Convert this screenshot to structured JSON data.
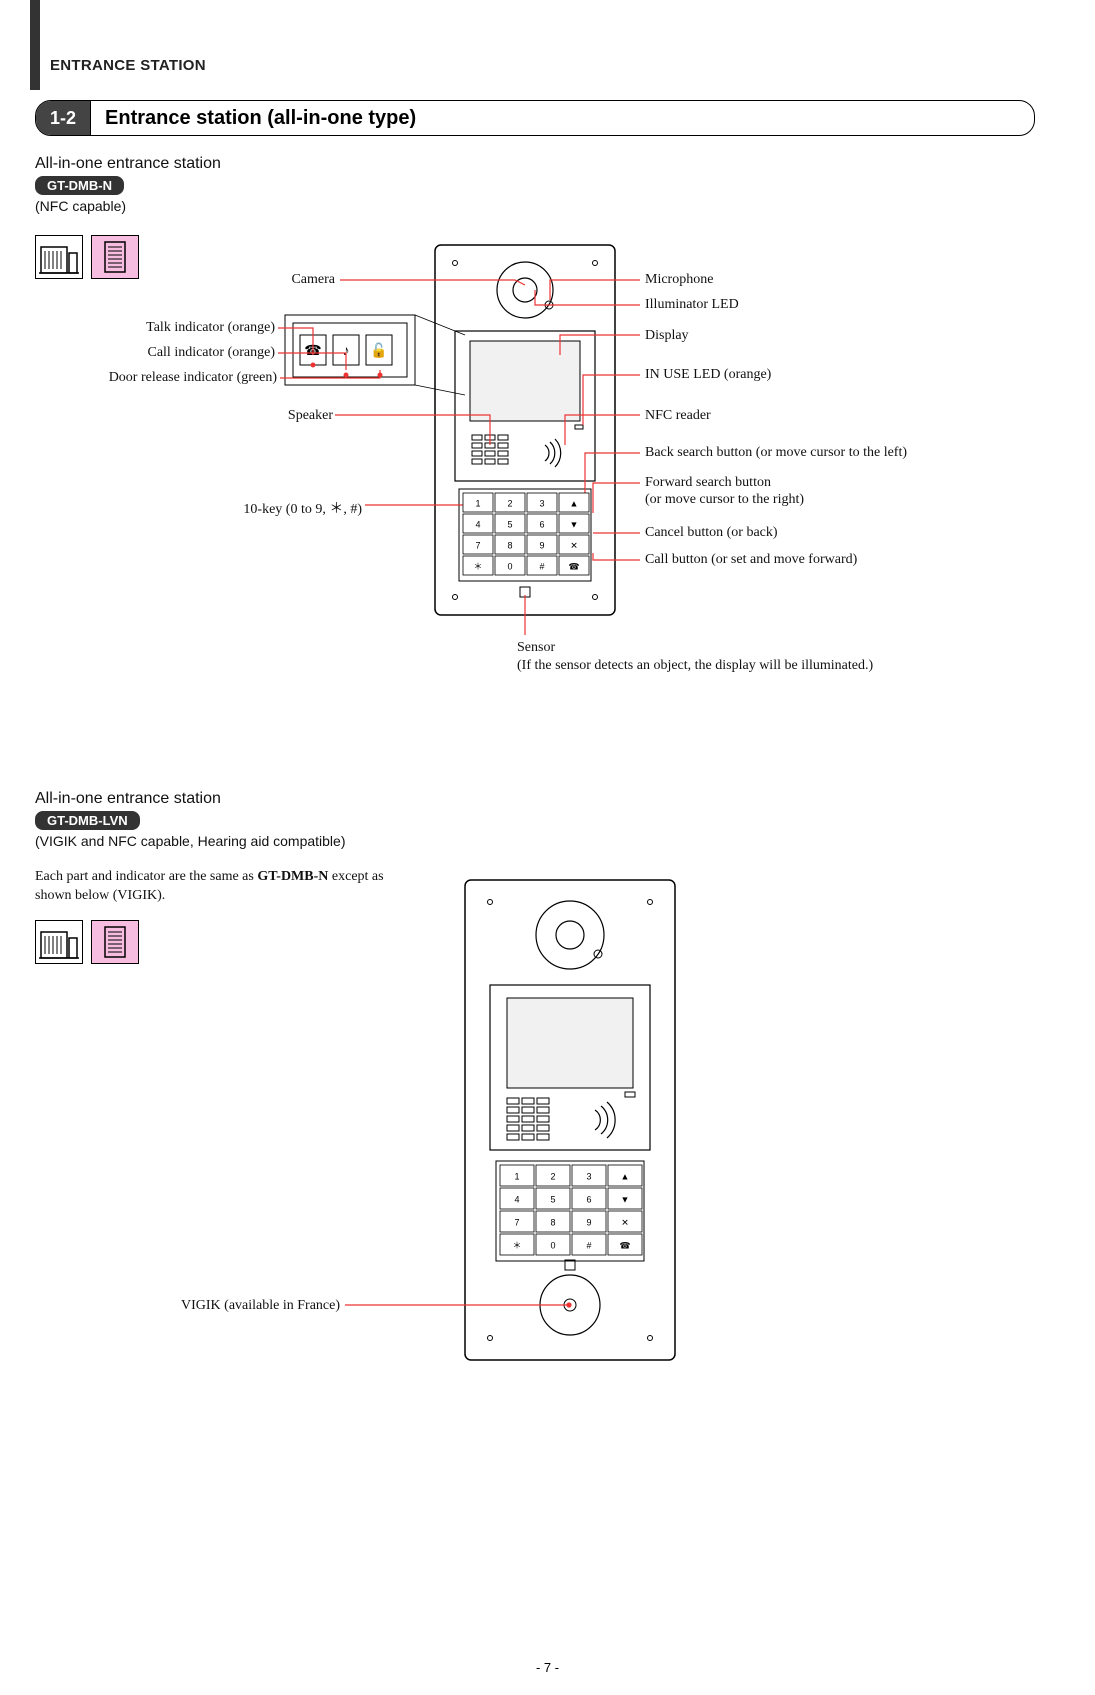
{
  "header": "ENTRANCE STATION",
  "section_number": "1-2",
  "section_title": "Entrance station (all-in-one type)",
  "model1": {
    "heading": "All-in-one entrance station",
    "model": "GT-DMB-N",
    "caps": "(NFC capable)",
    "labels_left": {
      "camera": "Camera",
      "talk_ind": "Talk indicator (orange)",
      "call_ind": "Call indicator (orange)",
      "door_rel": "Door release indicator (green)",
      "speaker": "Speaker",
      "tenkey": "10-key (0 to 9, ＊, #)"
    },
    "labels_right": {
      "mic": "Microphone",
      "illum": "Illuminator LED",
      "display": "Display",
      "inuse": "IN USE LED (orange)",
      "nfc": "NFC reader",
      "back_search": "Back search button (or move cursor to the left)",
      "fwd_search": "Forward search button",
      "fwd_search2": "(or move cursor to the right)",
      "cancel": "Cancel button (or back)",
      "call_btn": "Call button (or set and move forward)"
    },
    "sensor": "Sensor",
    "sensor_note": "(If the sensor detects an object, the display will be illuminated.)"
  },
  "model2": {
    "heading": "All-in-one entrance station",
    "model": "GT-DMB-LVN",
    "caps": "(VIGIK and NFC capable, Hearing aid compatible)",
    "note": "Each part and indicator are the same as GT-DMB-N except as shown below (VIGIK).",
    "vigik": "VIGIK (available in France)"
  },
  "page_number": "- 7 -",
  "colors": {
    "leader": "#ee3333",
    "pink": "#f6bde0",
    "badge_bg": "#333333"
  },
  "keypad": {
    "rows": [
      [
        "1",
        "2",
        "3",
        "▲"
      ],
      [
        "4",
        "5",
        "6",
        "▼"
      ],
      [
        "7",
        "8",
        "9",
        "✕"
      ],
      [
        "＊",
        "0",
        "#",
        "☎"
      ]
    ]
  }
}
